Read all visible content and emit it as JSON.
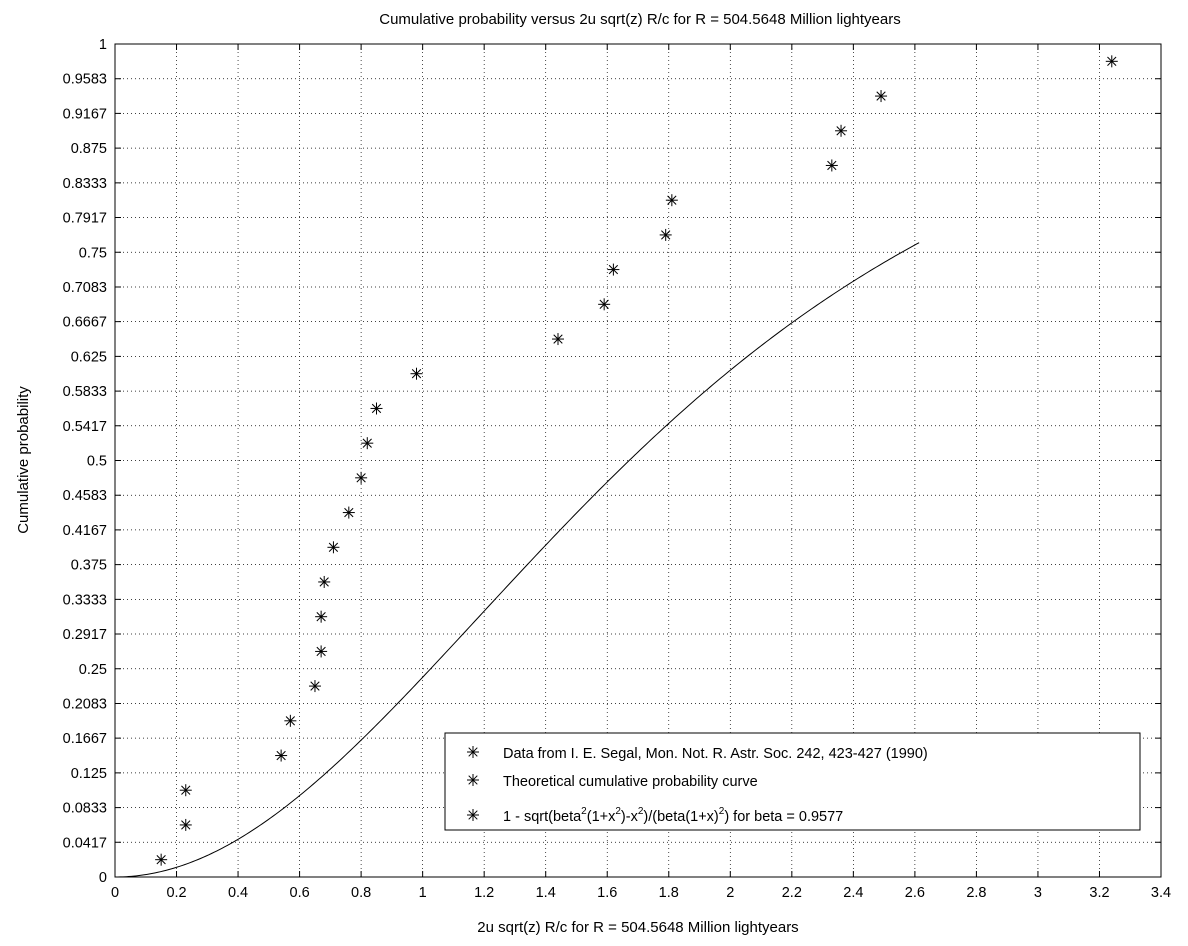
{
  "chart_data": {
    "type": "scatter",
    "title": "Cumulative probability versus 2u sqrt(z) R/c for R = 504.5648 Million lightyears",
    "xlabel": "2u sqrt(z) R/c for R = 504.5648 Million lightyears",
    "ylabel": "Cumulative probability",
    "xlim": [
      0,
      3.4
    ],
    "ylim": [
      0,
      1
    ],
    "grid": true,
    "legend_position": "bottom-right",
    "x_ticks": [
      "0",
      "0.2",
      "0.4",
      "0.6",
      "0.8",
      "1",
      "1.2",
      "1.4",
      "1.6",
      "1.8",
      "2",
      "2.2",
      "2.4",
      "2.6",
      "2.8",
      "3",
      "3.2",
      "3.4"
    ],
    "y_ticks": [
      "0",
      "0.0417",
      "0.0833",
      "0.125",
      "0.1667",
      "0.2083",
      "0.25",
      "0.2917",
      "0.3333",
      "0.375",
      "0.4167",
      "0.4583",
      "0.5",
      "0.5417",
      "0.5833",
      "0.625",
      "0.6667",
      "0.7083",
      "0.75",
      "0.7917",
      "0.8333",
      "0.875",
      "0.9167",
      "0.9583",
      "1"
    ],
    "series": [
      {
        "name": "Data from I. E. Segal, Mon. Not. R. Astr. Soc. 242, 423-427 (1990)",
        "marker": "asterisk",
        "points": [
          [
            0.15,
            0.0208
          ],
          [
            0.23,
            0.0625
          ],
          [
            0.23,
            0.1042
          ],
          [
            0.54,
            0.1458
          ],
          [
            0.57,
            0.1875
          ],
          [
            0.65,
            0.2292
          ],
          [
            0.67,
            0.2708
          ],
          [
            0.67,
            0.3125
          ],
          [
            0.68,
            0.3542
          ],
          [
            0.71,
            0.3958
          ],
          [
            0.76,
            0.4375
          ],
          [
            0.8,
            0.4792
          ],
          [
            0.82,
            0.5208
          ],
          [
            0.85,
            0.5625
          ],
          [
            0.98,
            0.6042
          ],
          [
            1.44,
            0.6458
          ],
          [
            1.59,
            0.6875
          ],
          [
            1.62,
            0.7292
          ],
          [
            1.79,
            0.7708
          ],
          [
            1.81,
            0.8125
          ],
          [
            2.33,
            0.8542
          ],
          [
            2.36,
            0.8958
          ],
          [
            2.49,
            0.9375
          ],
          [
            3.24,
            0.9792
          ]
        ]
      },
      {
        "name": "Theoretical cumulative probability curve",
        "type": "line",
        "formula": "1 - sqrt(beta^2(1+x^2)-x^2)/(beta(1+x)^2)",
        "beta": 0.9577
      },
      {
        "name": "1 - sqrt(beta^2(1+x^2)-x^2)/(beta(1+x)^2) for beta = 0.9577"
      }
    ]
  },
  "legend": {
    "entry1": "Data from I. E. Segal, Mon. Not. R. Astr. Soc. 242, 423-427 (1990)",
    "entry2": "Theoretical cumulative probability curve",
    "entry3_a": "1 - sqrt(beta",
    "entry3_sup1": "2",
    "entry3_b": "(1+x",
    "entry3_sup2": "2",
    "entry3_c": ")-x",
    "entry3_sup3": "2",
    "entry3_d": ")/(beta(1+x)",
    "entry3_sup4": "2",
    "entry3_e": ") for beta = 0.9577"
  }
}
